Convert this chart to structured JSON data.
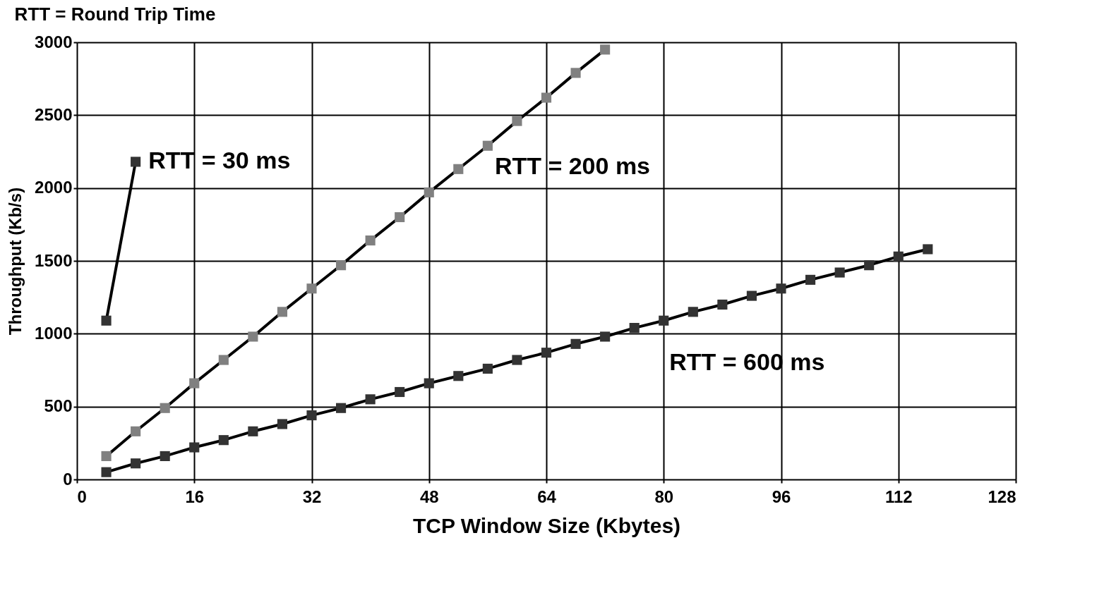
{
  "chart_data": {
    "type": "line",
    "title": "RTT = Round Trip Time",
    "xlabel": "TCP Window Size (Kbytes)",
    "ylabel": "Throughput (Kb/s)",
    "xlim": [
      0,
      128
    ],
    "xticks": [
      0,
      16,
      32,
      48,
      64,
      80,
      96,
      112,
      128
    ],
    "ylim": [
      0,
      3000
    ],
    "yticks": [
      0,
      500,
      1000,
      1500,
      2000,
      2500,
      3000
    ],
    "grid": true,
    "legend": false,
    "marker": "square",
    "line_style": "solid",
    "series": [
      {
        "name": "RTT = 30 ms",
        "color": "#333333",
        "x": [
          4,
          8
        ],
        "values": [
          1090,
          2180
        ]
      },
      {
        "name": "RTT = 200 ms",
        "color": "#808080",
        "x": [
          4,
          8,
          12,
          16,
          20,
          24,
          28,
          32,
          36,
          40,
          44,
          48,
          52,
          56,
          60,
          64,
          68,
          72
        ],
        "values": [
          160,
          330,
          490,
          660,
          820,
          980,
          1150,
          1310,
          1470,
          1640,
          1800,
          1970,
          2130,
          2290,
          2460,
          2620,
          2790,
          2950
        ]
      },
      {
        "name": "RTT = 600 ms",
        "color": "#333333",
        "x": [
          4,
          8,
          12,
          16,
          20,
          24,
          28,
          32,
          36,
          40,
          44,
          48,
          52,
          56,
          60,
          64,
          68,
          72,
          76,
          80,
          84,
          88,
          92,
          96,
          100,
          104,
          108,
          112,
          116
        ],
        "values": [
          50,
          110,
          160,
          220,
          270,
          330,
          380,
          440,
          490,
          550,
          600,
          660,
          710,
          760,
          820,
          870,
          930,
          980,
          1040,
          1090,
          1150,
          1200,
          1260,
          1310,
          1370,
          1420,
          1470,
          1530,
          1580
        ]
      }
    ]
  }
}
